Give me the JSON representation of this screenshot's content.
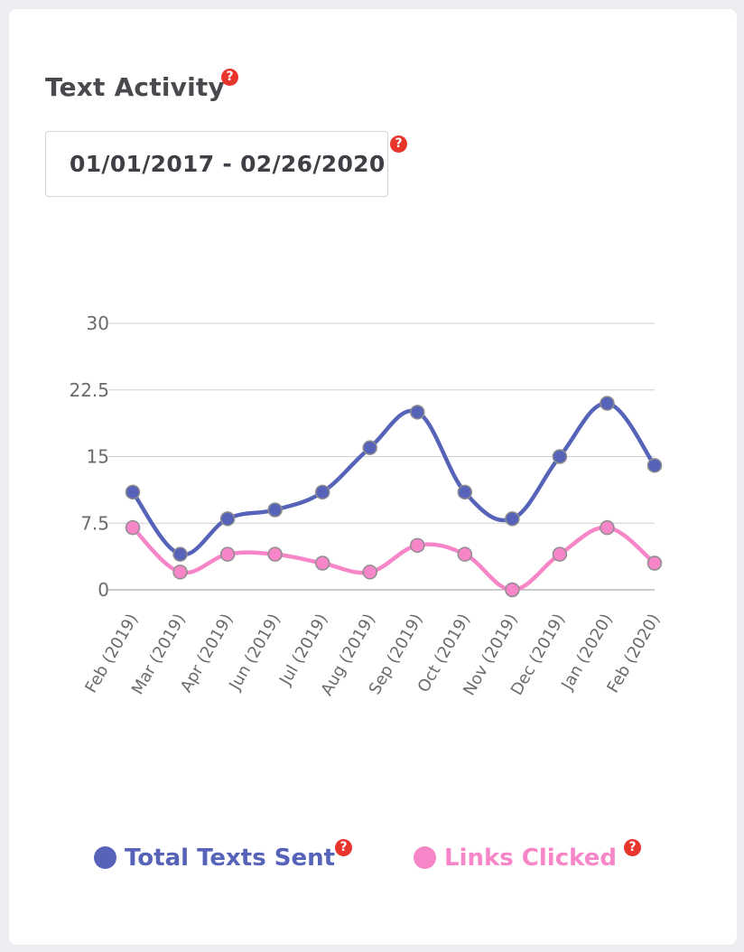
{
  "card": {
    "title": "Text Activity",
    "title_help_icon": "question-circle-icon",
    "date_range": "01/01/2017 - 02/26/2020",
    "date_help_icon": "question-circle-icon"
  },
  "chart_data": {
    "type": "line",
    "categories": [
      "Feb (2019)",
      "Mar (2019)",
      "Apr (2019)",
      "Jun (2019)",
      "Jul (2019)",
      "Aug (2019)",
      "Sep (2019)",
      "Oct (2019)",
      "Nov (2019)",
      "Dec (2019)",
      "Jan (2020)",
      "Feb (2020)"
    ],
    "series": [
      {
        "name": "Total Texts Sent",
        "color": "#5763b8",
        "values": [
          11,
          4,
          8,
          9,
          11,
          16,
          20,
          11,
          8,
          15,
          21,
          14
        ]
      },
      {
        "name": "Links Clicked",
        "color": "#f786c8",
        "values": [
          7,
          2,
          4,
          4,
          3,
          2,
          5,
          4,
          0,
          4,
          7,
          3
        ]
      }
    ],
    "yticks": [
      "0",
      "7.5",
      "15",
      "22.5",
      "30"
    ],
    "ylim": [
      0,
      30
    ],
    "grid": true,
    "legend_position": "bottom"
  },
  "legend": [
    {
      "label": "Total Texts Sent",
      "color": "#5763b8",
      "help_icon": "question-circle-icon"
    },
    {
      "label": "Links Clicked",
      "color": "#f786c8",
      "help_icon": "question-circle-icon"
    }
  ]
}
